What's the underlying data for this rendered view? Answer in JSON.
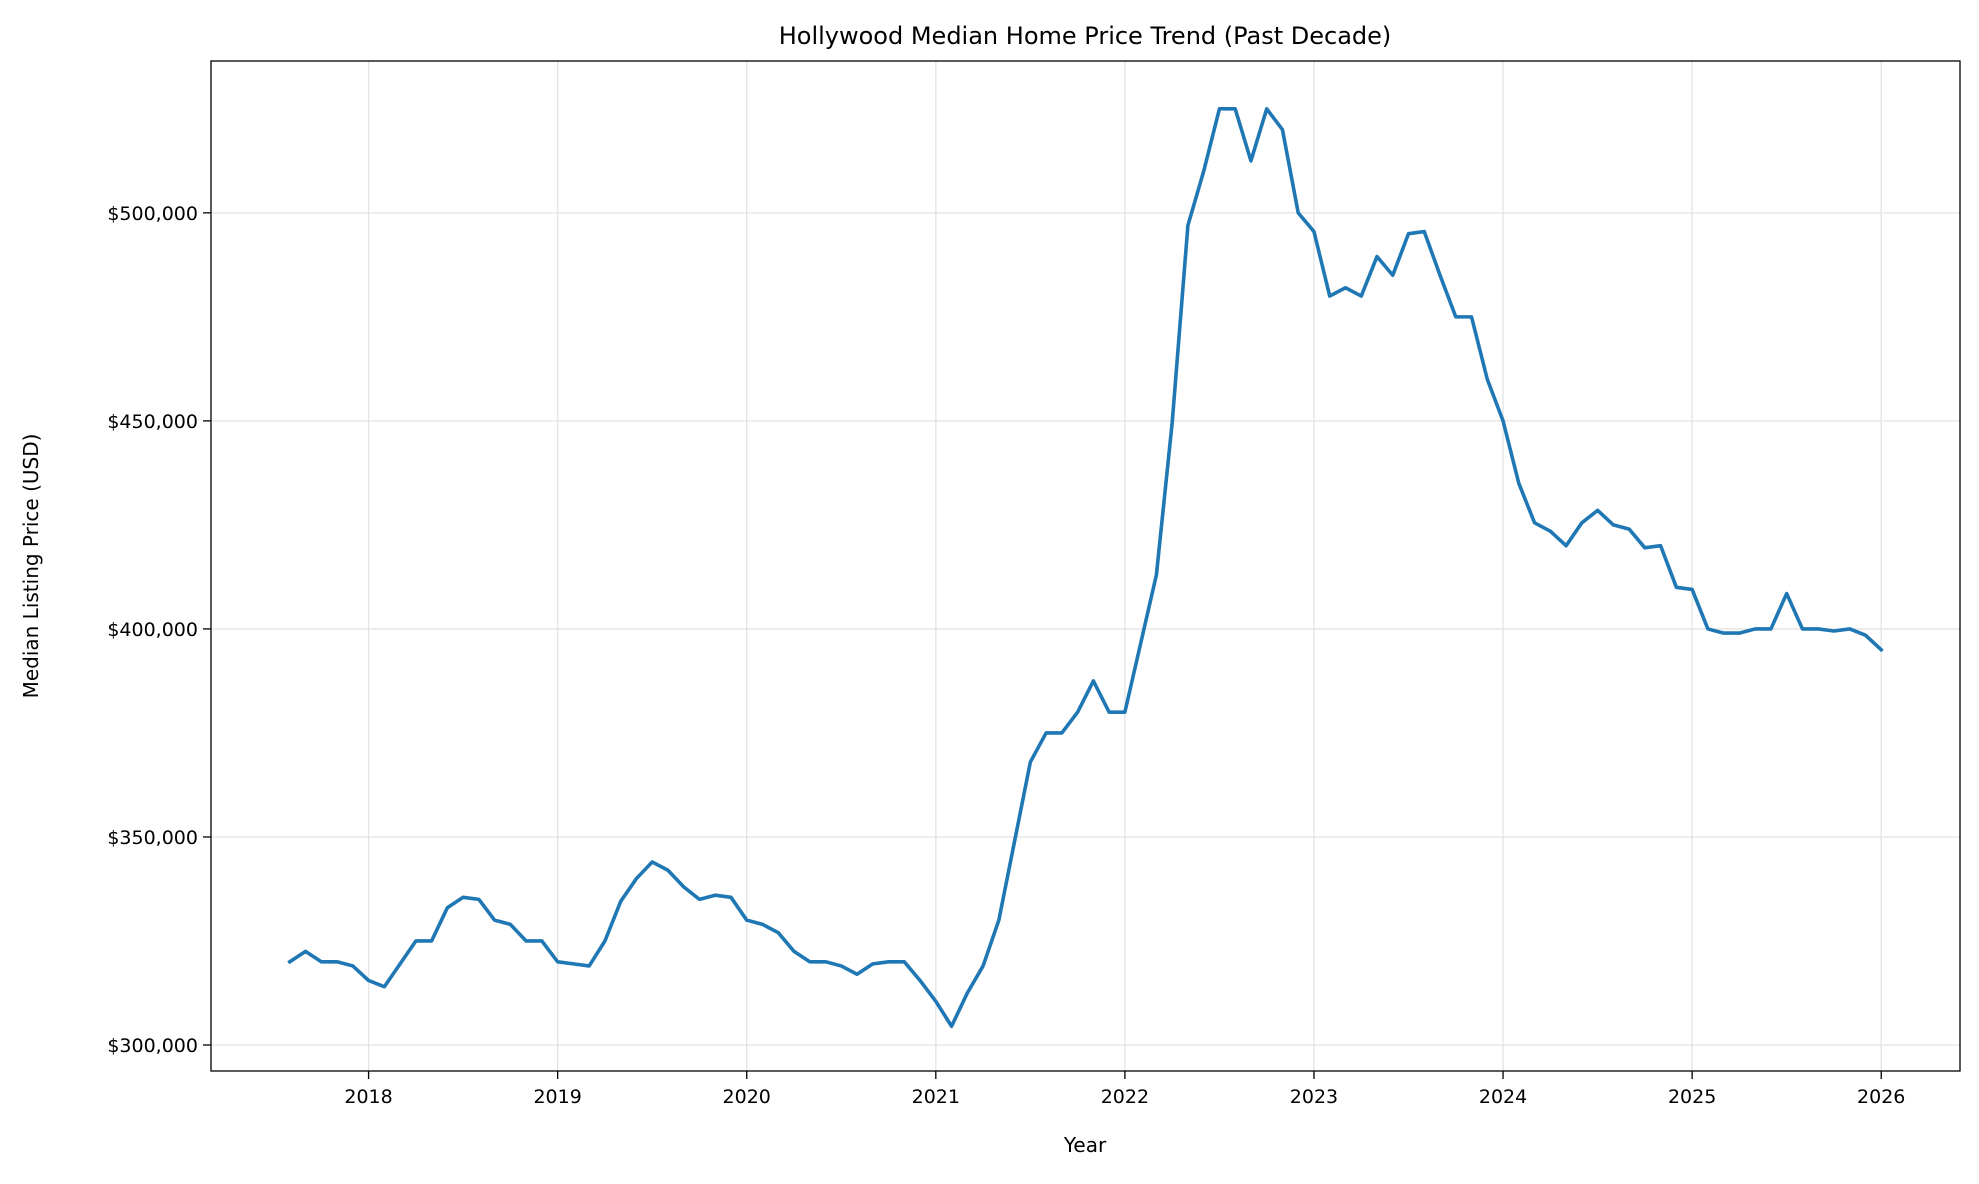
{
  "chart_data": {
    "type": "line",
    "title": "Hollywood Median Home Price Trend (Past Decade)",
    "xlabel": "Year",
    "ylabel": "Median Listing Price (USD)",
    "xlim": [
      "2017-03",
      "2026-06"
    ],
    "ylim": [
      293750,
      536500
    ],
    "grid": true,
    "line_color": "#1f77b4",
    "x_ticks": [
      "2018",
      "2019",
      "2020",
      "2021",
      "2022",
      "2023",
      "2024",
      "2025",
      "2026"
    ],
    "y_ticks": [
      {
        "value": 300000,
        "label": "$300,000"
      },
      {
        "value": 350000,
        "label": "$350,000"
      },
      {
        "value": 400000,
        "label": "$400,000"
      },
      {
        "value": 450000,
        "label": "$450,000"
      },
      {
        "value": 500000,
        "label": "$500,000"
      }
    ],
    "start_month": "2017-08",
    "series": [
      {
        "values": [
          320000,
          322500,
          320000,
          320000,
          319000,
          315500,
          314000,
          319500,
          325000,
          325000,
          333000,
          335500,
          335000,
          330000,
          329000,
          325000,
          325000,
          320000,
          319500,
          319000,
          325000,
          334500,
          340000,
          344000,
          342000,
          338000,
          335000,
          336000,
          335500,
          330000,
          329000,
          327000,
          322500,
          320000,
          320000,
          319000,
          317000,
          319500,
          320000,
          320000,
          315500,
          310500,
          304500,
          312500,
          319000,
          330000,
          349000,
          368000,
          375000,
          375000,
          380000,
          387500,
          380000,
          380000,
          396500,
          413000,
          449500,
          497000,
          510000,
          525000,
          525000,
          512500,
          525000,
          520000,
          500000,
          495500,
          480000,
          482000,
          480000,
          489500,
          485000,
          495000,
          495500,
          485000,
          475000,
          475000,
          460000,
          450000,
          435000,
          425500,
          423500,
          420000,
          425500,
          428500,
          425000,
          424000,
          419500,
          420000,
          410000,
          409500,
          400000,
          399000,
          399000,
          400000,
          400000,
          408500,
          400000,
          400000,
          399500,
          400000,
          398500,
          395000
        ]
      }
    ]
  }
}
